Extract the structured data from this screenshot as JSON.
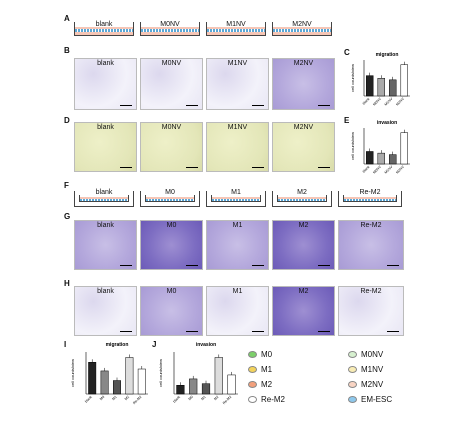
{
  "panels": {
    "A": {
      "letter": "A",
      "wells": [
        "blank",
        "M0NV",
        "M1NV",
        "M2NV"
      ]
    },
    "B": {
      "letter": "B",
      "images": [
        "blank",
        "M0NV",
        "M1NV",
        "M2NV"
      ]
    },
    "C": {
      "letter": "C",
      "title": "migration",
      "ylabel": "cell counts/view"
    },
    "D": {
      "letter": "D",
      "images": [
        "blank",
        "M0NV",
        "M1NV",
        "M2NV"
      ]
    },
    "E": {
      "letter": "E",
      "title": "invasion",
      "ylabel": "cell counts/view"
    },
    "F": {
      "letter": "F",
      "wells": [
        "blank",
        "M0",
        "M1",
        "M2",
        "Re-M2"
      ]
    },
    "G": {
      "letter": "G",
      "images": [
        "blank",
        "M0",
        "M1",
        "M2",
        "Re-M2"
      ]
    },
    "H": {
      "letter": "H",
      "images": [
        "blank",
        "M0",
        "M1",
        "M2",
        "Re-M2"
      ]
    },
    "I": {
      "letter": "I",
      "title": "migration",
      "ylabel": "cell counts/view"
    },
    "J": {
      "letter": "J",
      "title": "invasion",
      "ylabel": "cell counts/view"
    }
  },
  "legend": [
    {
      "label": "M0",
      "color": "#7ccf6a"
    },
    {
      "label": "M0NV",
      "color": "#d6f0cf"
    },
    {
      "label": "M1",
      "color": "#f3d35c"
    },
    {
      "label": "M1NV",
      "color": "#f8ecb5"
    },
    {
      "label": "M2",
      "color": "#f2a07c"
    },
    {
      "label": "M2NV",
      "color": "#f8d4c3"
    },
    {
      "label": "Re-M2",
      "color": "#ffffff"
    },
    {
      "label": "EM-ESC",
      "color": "#8ec8ec"
    }
  ],
  "chart_data": [
    {
      "type": "bar",
      "panel": "C",
      "title": "migration",
      "ylabel": "cell counts/view",
      "categories": [
        "blank",
        "M0NV",
        "M1NV",
        "M2NV"
      ],
      "values": [
        78,
        68,
        62,
        120
      ]
    },
    {
      "type": "bar",
      "panel": "E",
      "title": "invasion",
      "ylabel": "cell counts/view",
      "categories": [
        "blank",
        "M0NV",
        "M1NV",
        "M2NV"
      ],
      "values": [
        60,
        52,
        45,
        150
      ]
    },
    {
      "type": "bar",
      "panel": "I",
      "title": "migration",
      "ylabel": "cell counts/view",
      "categories": [
        "blank",
        "M0",
        "M1",
        "M2",
        "Re-M2"
      ],
      "values": [
        165,
        120,
        70,
        190,
        130
      ]
    },
    {
      "type": "bar",
      "panel": "J",
      "title": "invasion",
      "ylabel": "cell counts/view",
      "categories": [
        "blank",
        "M0",
        "M1",
        "M2",
        "Re-M2"
      ],
      "values": [
        55,
        95,
        65,
        230,
        120
      ]
    }
  ]
}
